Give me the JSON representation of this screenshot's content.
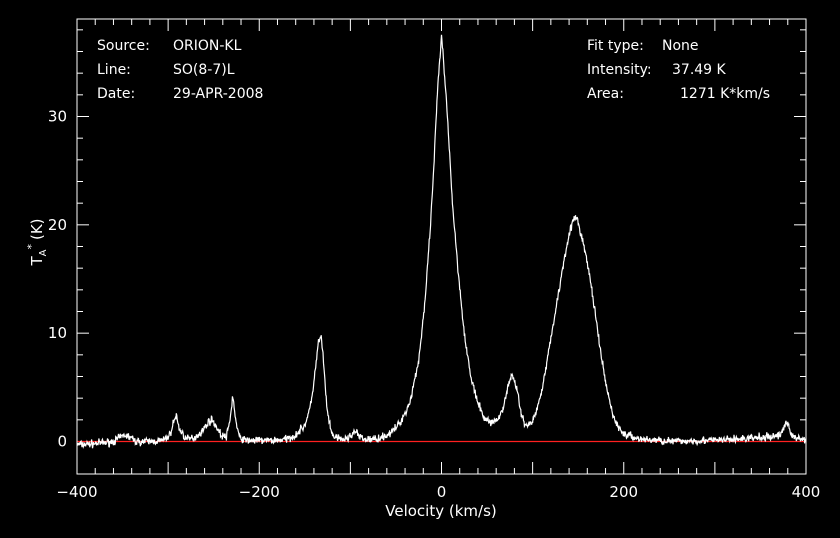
{
  "header_left": {
    "source_key": "Source:",
    "source_val": "ORION-KL",
    "line_key": "Line:",
    "line_val": "SO(8-7)L",
    "date_key": "Date:",
    "date_val": "29-APR-2008"
  },
  "header_right": {
    "fit_key": "Fit type:",
    "fit_val": "None",
    "intensity_key": "Intensity:",
    "intensity_val": "37.49 K",
    "area_key": "Area:",
    "area_val": "1271 K*km/s"
  },
  "chart_data": {
    "type": "line",
    "title": "",
    "xlabel": "Velocity (km/s)",
    "ylabel_main": "T",
    "ylabel_sub": "A",
    "ylabel_sup": "*",
    "ylabel_unit": "(K)",
    "xlim": [
      -400,
      400
    ],
    "ylim": [
      -3,
      39
    ],
    "xticks": [
      -400,
      -200,
      0,
      200,
      400
    ],
    "xtick_labels": [
      "−400",
      "−200",
      "0",
      "200",
      "400"
    ],
    "yticks": [
      0,
      10,
      20,
      30
    ],
    "ytick_labels": [
      "0",
      "10",
      "20",
      "30"
    ],
    "baseline": 0,
    "colors": {
      "background": "#000000",
      "line": "#ffffff",
      "baseline": "#ff2020"
    },
    "series": [
      {
        "x": [
          -400,
          -380,
          -360,
          -348,
          -342,
          -335,
          -320,
          -305,
          -298,
          -294,
          -291,
          -288,
          -280,
          -270,
          -262,
          -256,
          -252,
          -248,
          -242,
          -236,
          -232,
          -229,
          -226,
          -222,
          -215,
          -200,
          -185,
          -170,
          -160,
          -150,
          -143,
          -138,
          -135,
          -132,
          -130,
          -128,
          -125,
          -121,
          -117,
          -112,
          -105,
          -100,
          -96,
          -93,
          -90,
          -85,
          -75,
          -65,
          -55,
          -45,
          -35,
          -25,
          -18,
          -12,
          -8,
          -5,
          -3,
          -1,
          0,
          1,
          3,
          5,
          8,
          12,
          18,
          25,
          32,
          40,
          48,
          55,
          62,
          68,
          72,
          76,
          80,
          82,
          84,
          86,
          88,
          92,
          96,
          100,
          105,
          110,
          115,
          120,
          125,
          130,
          135,
          140,
          145,
          148,
          150,
          152,
          155,
          160,
          165,
          170,
          175,
          180,
          185,
          190,
          195,
          200,
          210,
          220,
          240,
          260,
          280,
          300,
          320,
          340,
          360,
          372,
          378,
          381,
          384,
          388,
          395,
          400
        ],
        "y": [
          -0.3,
          -0.2,
          0,
          0.6,
          0.4,
          0,
          0,
          0.1,
          0.6,
          1.8,
          2.4,
          1.2,
          0.2,
          0.4,
          1.0,
          1.8,
          2.0,
          1.5,
          0.6,
          0.4,
          2.0,
          4.3,
          2.0,
          0.4,
          0.1,
          0.1,
          0.1,
          0.2,
          0.6,
          1.5,
          3.5,
          7.0,
          9.2,
          9.6,
          8.0,
          5.5,
          2.5,
          0.8,
          0.4,
          0.2,
          0.2,
          0.5,
          0.9,
          0.8,
          0.4,
          0.2,
          0.2,
          0.4,
          0.8,
          1.8,
          3.5,
          7.5,
          13.0,
          20.0,
          26.0,
          31.5,
          34.0,
          36.0,
          37.4,
          36.5,
          34.0,
          32.0,
          28.0,
          22.0,
          16.0,
          10.0,
          6.0,
          3.5,
          2.0,
          1.8,
          2.0,
          3.2,
          4.8,
          6.0,
          5.8,
          5.0,
          4.2,
          3.2,
          2.4,
          1.6,
          1.5,
          1.9,
          3.0,
          4.8,
          7.0,
          9.5,
          12.0,
          14.5,
          17.0,
          19.2,
          20.5,
          20.6,
          20.2,
          19.5,
          18.5,
          16.5,
          14.0,
          11.0,
          8.0,
          5.5,
          3.5,
          2.0,
          1.2,
          0.7,
          0.4,
          0.2,
          0.1,
          0,
          0.1,
          0.1,
          0.2,
          0.3,
          0.4,
          0.6,
          1.8,
          1.5,
          0.6,
          0.3,
          0.2,
          0.3
        ]
      }
    ]
  }
}
